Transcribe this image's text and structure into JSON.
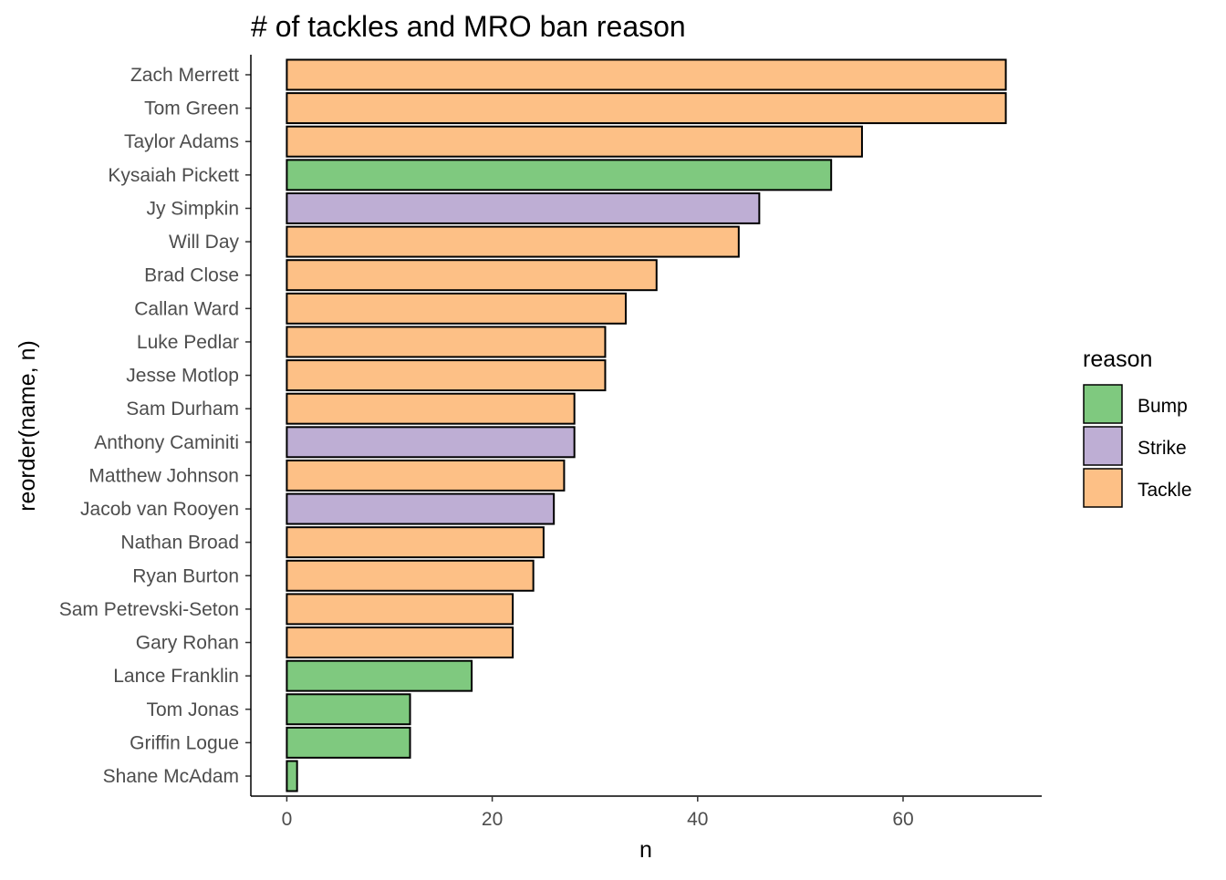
{
  "chart_data": {
    "type": "bar",
    "orientation": "horizontal",
    "title": "# of tackles and MRO ban reason",
    "xlabel": "n",
    "ylabel": "reorder(name, n)",
    "xlim": [
      -3.5,
      73.5
    ],
    "xticks": [
      0,
      20,
      40,
      60
    ],
    "grid": false,
    "legend": {
      "title": "reason",
      "placement": "right",
      "entries": [
        {
          "label": "Bump",
          "color": "#7FC97F"
        },
        {
          "label": "Strike",
          "color": "#BEAED4"
        },
        {
          "label": "Tackle",
          "color": "#FDC086"
        }
      ]
    },
    "bars": [
      {
        "name": "Zach Merrett",
        "value": 70,
        "reason": "Tackle"
      },
      {
        "name": "Tom Green",
        "value": 70,
        "reason": "Tackle"
      },
      {
        "name": "Taylor Adams",
        "value": 56,
        "reason": "Tackle"
      },
      {
        "name": "Kysaiah Pickett",
        "value": 53,
        "reason": "Bump"
      },
      {
        "name": "Jy Simpkin",
        "value": 46,
        "reason": "Strike"
      },
      {
        "name": "Will Day",
        "value": 44,
        "reason": "Tackle"
      },
      {
        "name": "Brad Close",
        "value": 36,
        "reason": "Tackle"
      },
      {
        "name": "Callan Ward",
        "value": 33,
        "reason": "Tackle"
      },
      {
        "name": "Luke Pedlar",
        "value": 31,
        "reason": "Tackle"
      },
      {
        "name": "Jesse Motlop",
        "value": 31,
        "reason": "Tackle"
      },
      {
        "name": "Sam Durham",
        "value": 28,
        "reason": "Tackle"
      },
      {
        "name": "Anthony Caminiti",
        "value": 28,
        "reason": "Strike"
      },
      {
        "name": "Matthew Johnson",
        "value": 27,
        "reason": "Tackle"
      },
      {
        "name": "Jacob van Rooyen",
        "value": 26,
        "reason": "Strike"
      },
      {
        "name": "Nathan Broad",
        "value": 25,
        "reason": "Tackle"
      },
      {
        "name": "Ryan Burton",
        "value": 24,
        "reason": "Tackle"
      },
      {
        "name": "Sam Petrevski-Seton",
        "value": 22,
        "reason": "Tackle"
      },
      {
        "name": "Gary Rohan",
        "value": 22,
        "reason": "Tackle"
      },
      {
        "name": "Lance Franklin",
        "value": 18,
        "reason": "Bump"
      },
      {
        "name": "Tom Jonas",
        "value": 12,
        "reason": "Bump"
      },
      {
        "name": "Griffin Logue",
        "value": 12,
        "reason": "Bump"
      },
      {
        "name": "Shane McAdam",
        "value": 1,
        "reason": "Bump"
      }
    ]
  }
}
